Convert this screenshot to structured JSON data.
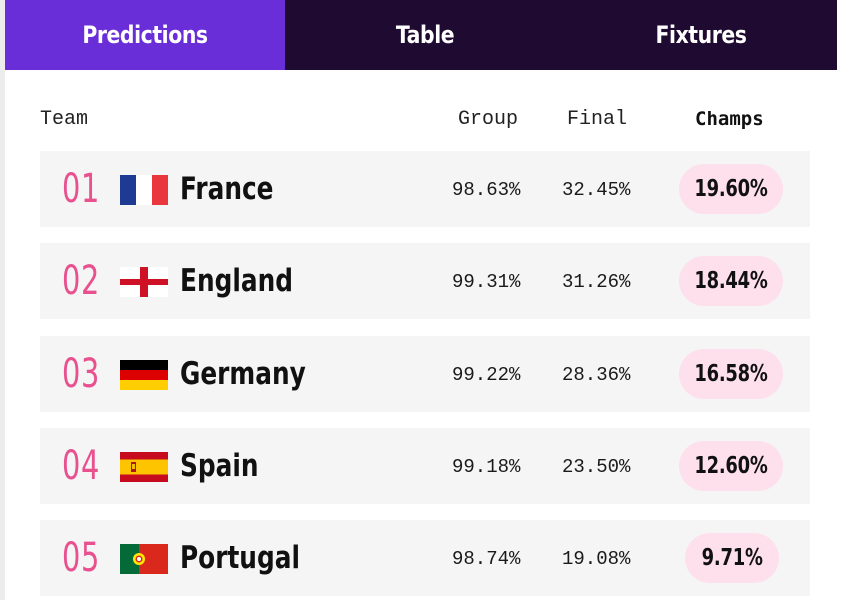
{
  "tabs": [
    {
      "label": "Predictions",
      "active": true
    },
    {
      "label": "Table",
      "active": false
    },
    {
      "label": "Fixtures",
      "active": false
    }
  ],
  "columns": {
    "team": "Team",
    "group": "Group",
    "final": "Final",
    "champs": "Champs"
  },
  "colors": {
    "tab_active": "#6a2ed9",
    "tab_bar": "#1f0b31",
    "rank": "#e8508e",
    "pill": "#fde0ec",
    "row_bg": "#f5f5f5"
  },
  "rows": [
    {
      "rank": "01",
      "flag": "france-flag",
      "team": "France",
      "group": "98.63%",
      "final": "32.45%",
      "champs": "19.60%"
    },
    {
      "rank": "02",
      "flag": "england-flag",
      "team": "England",
      "group": "99.31%",
      "final": "31.26%",
      "champs": "18.44%"
    },
    {
      "rank": "03",
      "flag": "germany-flag",
      "team": "Germany",
      "group": "99.22%",
      "final": "28.36%",
      "champs": "16.58%"
    },
    {
      "rank": "04",
      "flag": "spain-flag",
      "team": "Spain",
      "group": "99.18%",
      "final": "23.50%",
      "champs": "12.60%"
    },
    {
      "rank": "05",
      "flag": "portugal-flag",
      "team": "Portugal",
      "group": "98.74%",
      "final": "19.08%",
      "champs": "9.71%"
    }
  ]
}
